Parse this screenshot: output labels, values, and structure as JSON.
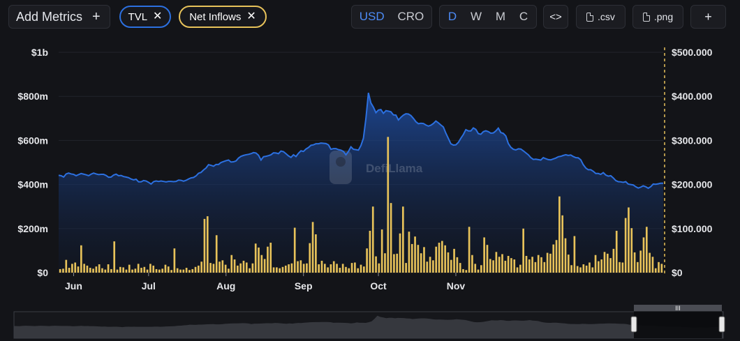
{
  "toolbar": {
    "add_metrics_label": "Add Metrics",
    "add_metrics_icon": "plus-icon",
    "metric_pills": [
      {
        "label": "TVL",
        "color": "#2c70e0",
        "remove_icon": "close-icon"
      },
      {
        "label": "Net Inflows",
        "color": "#e7c25a",
        "remove_icon": "close-icon"
      }
    ],
    "currency": {
      "options": [
        "USD",
        "CRO"
      ],
      "selected": "USD"
    },
    "period": {
      "options": [
        "D",
        "W",
        "M",
        "C"
      ],
      "selected": "D"
    },
    "embed_label": "<>",
    "embed_icon": "code-icon",
    "csv_label": ".csv",
    "png_label": ".png",
    "download_icon": "file-icon",
    "more_label": "+",
    "accent_color": "#4d8cf7"
  },
  "watermark": {
    "text": "DefiLlama",
    "icon": "llama-logo-icon"
  },
  "chart_data": {
    "type": "area",
    "x_ticks": [
      "Jun",
      "Jul",
      "Aug",
      "Sep",
      "Oct",
      "Nov"
    ],
    "left_axis": {
      "ticks": [
        "$0",
        "$200m",
        "$400m",
        "$600m",
        "$800m",
        "$1b"
      ],
      "ylim": [
        0,
        1000000000
      ]
    },
    "right_axis": {
      "ticks": [
        "$0",
        "$100.000",
        "$200.000",
        "$300.000",
        "$400.000",
        "$500.000"
      ],
      "ylim": [
        0,
        500000
      ]
    },
    "grid": true,
    "series": [
      {
        "name": "TVL",
        "type": "area",
        "axis": "left",
        "color": "#2c70e0",
        "unit": "USD",
        "values": [
          442,
          440,
          434,
          448,
          452,
          448,
          446,
          440,
          445,
          450,
          447,
          444,
          440,
          447,
          452,
          448,
          445,
          446,
          446,
          441,
          433,
          434,
          443,
          447,
          440,
          441,
          436,
          434,
          431,
          425,
          421,
          424,
          412,
          412,
          418,
          416,
          410,
          402,
          413,
          416,
          414,
          416,
          414,
          412,
          414,
          414,
          413,
          414,
          420,
          419,
          415,
          419,
          425,
          430,
          432,
          439,
          451,
          455,
          466,
          475,
          490,
          487,
          483,
          491,
          491,
          500,
          504,
          508,
          511,
          502,
          503,
          507,
          520,
          528,
          532,
          535,
          537,
          540,
          545,
          543,
          533,
          511,
          526,
          528,
          531,
          535,
          544,
          543,
          540,
          552,
          549,
          540,
          530,
          523,
          535,
          527,
          542,
          553,
          550,
          561,
          568,
          578,
          580,
          585,
          585,
          588,
          587,
          586,
          580,
          560,
          563,
          563,
          558,
          556,
          550,
          535,
          550,
          571,
          560,
          558,
          556,
          577,
          610,
          700,
          816,
          770,
          751,
          726,
          738,
          740,
          723,
          735,
          733,
          730,
          716,
          715,
          693,
          705,
          715,
          721,
          720,
          713,
          700,
          685,
          676,
          678,
          677,
          670,
          665,
          669,
          677,
          688,
          680,
          670,
          661,
          633,
          609,
          585,
          579,
          580,
          591,
          610,
          627,
          649,
          643,
          643,
          657,
          650,
          631,
          628,
          640,
          644,
          640,
          633,
          634,
          643,
          656,
          636,
          632,
          620,
          586,
          569,
          560,
          557,
          562,
          561,
          553,
          544,
          535,
          522,
          514,
          515,
          513,
          511,
          522,
          517,
          513,
          512,
          516,
          520,
          526,
          528,
          532,
          535,
          532,
          534,
          527,
          522,
          521,
          512,
          490,
          475,
          467,
          467,
          460,
          450,
          450,
          446,
          454,
          443,
          438,
          440,
          430,
          418,
          413,
          412,
          410,
          413,
          402,
          400,
          398,
          390,
          384,
          388,
          394,
          390,
          383,
          390,
          402,
          401,
          403,
          406,
          406
        ]
      },
      {
        "name": "Net Inflows",
        "type": "bar",
        "axis": "right",
        "color": "#e7c25a",
        "unit": "USD",
        "values": [
          8000,
          9000,
          29000,
          11000,
          20000,
          23000,
          14000,
          62000,
          20000,
          16000,
          11000,
          9000,
          14000,
          19000,
          10000,
          7000,
          19000,
          8000,
          71000,
          7000,
          13000,
          12000,
          7000,
          18000,
          7000,
          9000,
          20000,
          11000,
          13000,
          7000,
          20000,
          16000,
          8000,
          7000,
          9000,
          18000,
          14000,
          6000,
          55000,
          10000,
          7000,
          7000,
          11000,
          6000,
          8000,
          13000,
          16000,
          25000,
          122000,
          128000,
          22000,
          20000,
          85000,
          25000,
          28000,
          18000,
          9000,
          40000,
          30000,
          16000,
          21000,
          27000,
          23000,
          10000,
          21000,
          66000,
          57000,
          40000,
          31000,
          59000,
          68000,
          12000,
          12000,
          10000,
          13000,
          16000,
          19000,
          21000,
          102000,
          26000,
          28000,
          20000,
          21000,
          67000,
          115000,
          87000,
          19000,
          27000,
          20000,
          12000,
          19000,
          26000,
          20000,
          11000,
          20000,
          13000,
          10000,
          22000,
          23000,
          10000,
          18000,
          14000,
          55000,
          95000,
          150000,
          37000,
          21000,
          98000,
          44000,
          308000,
          158000,
          42000,
          43000,
          89000,
          150000,
          22000,
          93000,
          65000,
          82000,
          63000,
          44000,
          58000,
          25000,
          36000,
          28000,
          59000,
          68000,
          72000,
          62000,
          46000,
          29000,
          54000,
          35000,
          22000,
          8000,
          6000,
          104000,
          40000,
          20000,
          7000,
          17000,
          80000,
          63000,
          31000,
          28000,
          47000,
          36000,
          42000,
          27000,
          38000,
          33000,
          30000,
          12000,
          18000,
          100000,
          38000,
          30000,
          36000,
          24000,
          40000,
          35000,
          24000,
          45000,
          43000,
          64000,
          74000,
          173000,
          130000,
          78000,
          41000,
          17000,
          83000,
          15000,
          12000,
          19000,
          16000,
          23000,
          12000,
          40000,
          26000,
          30000,
          47000,
          43000,
          33000,
          54000,
          95000,
          24000,
          23000,
          124000,
          148000,
          101000,
          46000,
          24000,
          50000,
          80000,
          104000,
          45000,
          36000,
          10000,
          24000,
          20000
        ]
      }
    ]
  },
  "brush": {
    "handle_icon": "drag-handle-icon"
  }
}
